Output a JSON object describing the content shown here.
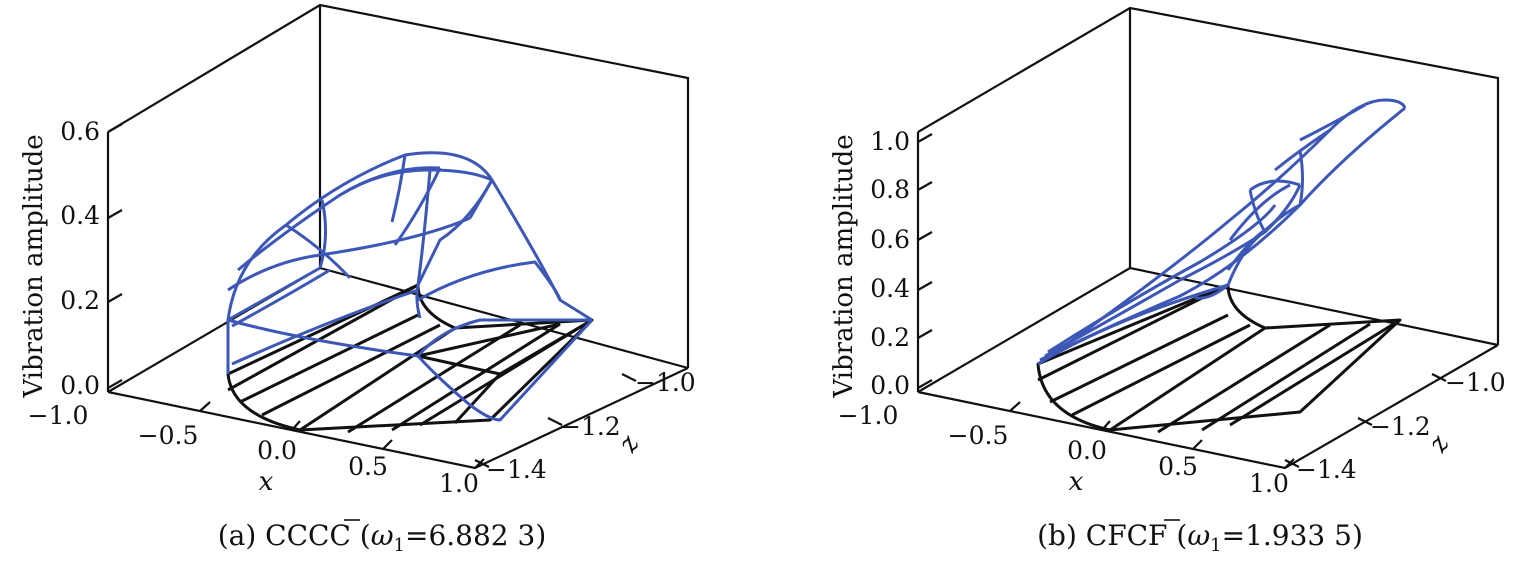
{
  "chart_data": [
    {
      "type": "wireframe-3d",
      "caption": {
        "prefix": "(a) CCCC (",
        "omega": "ω",
        "sub": "1",
        "value": "=6.882 3)"
      },
      "zlabel": "Vibration amplitude",
      "xlabel": "x",
      "ylabel": "z",
      "zticks": [
        "0.0",
        "0.2",
        "0.4",
        "0.6"
      ],
      "xticks": [
        "−1.0",
        "−0.5",
        "0.0",
        "0.5",
        "1.0"
      ],
      "yticks": [
        "−1.0",
        "−1.2",
        "−1.4"
      ],
      "zlim": [
        0,
        0.6
      ],
      "series": [
        {
          "color": "#111111",
          "role": "undeformed mesh (z = 0)"
        },
        {
          "color": "#3d57b6",
          "role": "mode shape",
          "peak_amplitude": 0.57
        }
      ],
      "grid": false
    },
    {
      "type": "wireframe-3d",
      "caption": {
        "prefix": "(b) CFCF (",
        "omega": "ω",
        "sub": "1",
        "value": "=1.933 5)"
      },
      "zlabel": "Vibration amplitude",
      "xlabel": "x",
      "ylabel": "z",
      "zticks": [
        "0.0",
        "0.2",
        "0.4",
        "0.6",
        "0.8",
        "1.0"
      ],
      "xticks": [
        "−1.0",
        "−0.5",
        "0.0",
        "0.5",
        "1.0"
      ],
      "yticks": [
        "−1.0",
        "−1.2",
        "−1.4"
      ],
      "zlim": [
        0,
        1.0
      ],
      "series": [
        {
          "color": "#111111",
          "role": "undeformed mesh (z = 0)"
        },
        {
          "color": "#3d57b6",
          "role": "mode shape",
          "peak_amplitude": 1.0
        }
      ],
      "grid": false
    }
  ]
}
